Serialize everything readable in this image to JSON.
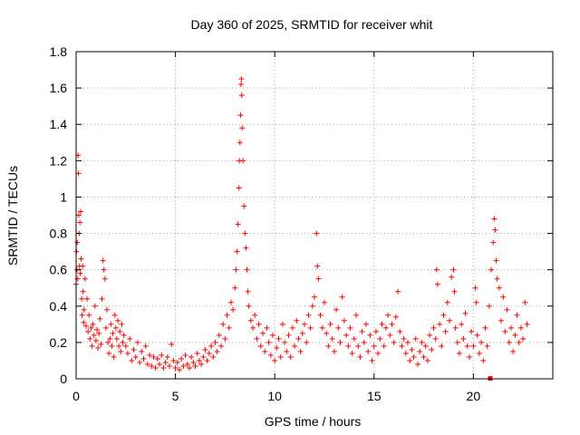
{
  "chart_data": {
    "type": "scatter",
    "title": "Day 360 of 2025, SRMTID for receiver whit",
    "xlabel": "GPS time / hours",
    "ylabel": "SRMTID / TECUs",
    "xlim": [
      0,
      24
    ],
    "ylim": [
      0,
      1.8
    ],
    "xticks": [
      0,
      5,
      10,
      15,
      20
    ],
    "yticks": [
      0,
      0.2,
      0.4,
      0.6,
      0.8,
      1,
      1.2,
      1.4,
      1.6,
      1.8
    ],
    "ytick_labels": [
      "0",
      "0.2",
      "0.4",
      "0.6",
      "0.8",
      "1",
      "1.2",
      "1.4",
      "1.6",
      "1.8"
    ],
    "grid": true,
    "marker": "+",
    "color": "#ff0000",
    "series": [
      {
        "name": "SRMTID",
        "points": [
          [
            0.0,
            0.52
          ],
          [
            0.02,
            0.7
          ],
          [
            0.04,
            0.6
          ],
          [
            0.06,
            0.75
          ],
          [
            0.08,
            0.55
          ],
          [
            0.1,
            1.23
          ],
          [
            0.12,
            1.13
          ],
          [
            0.13,
            0.9
          ],
          [
            0.15,
            0.8
          ],
          [
            0.17,
            0.62
          ],
          [
            0.19,
            0.86
          ],
          [
            0.21,
            0.58
          ],
          [
            0.23,
            0.92
          ],
          [
            0.25,
            0.66
          ],
          [
            0.28,
            0.44
          ],
          [
            0.3,
            0.35
          ],
          [
            0.33,
            0.62
          ],
          [
            0.35,
            0.48
          ],
          [
            0.38,
            0.31
          ],
          [
            0.4,
            0.38
          ],
          [
            0.45,
            0.55
          ],
          [
            0.5,
            0.29
          ],
          [
            0.55,
            0.44
          ],
          [
            0.6,
            0.26
          ],
          [
            0.65,
            0.35
          ],
          [
            0.7,
            0.22
          ],
          [
            0.75,
            0.28
          ],
          [
            0.8,
            0.18
          ],
          [
            0.85,
            0.3
          ],
          [
            0.9,
            0.24
          ],
          [
            0.95,
            0.4
          ],
          [
            1.0,
            0.21
          ],
          [
            1.05,
            0.27
          ],
          [
            1.1,
            0.17
          ],
          [
            1.15,
            0.25
          ],
          [
            1.2,
            0.33
          ],
          [
            1.25,
            0.19
          ],
          [
            1.3,
            0.44
          ],
          [
            1.35,
            0.65
          ],
          [
            1.4,
            0.6
          ],
          [
            1.45,
            0.55
          ],
          [
            1.5,
            0.28
          ],
          [
            1.55,
            0.38
          ],
          [
            1.6,
            0.2
          ],
          [
            1.65,
            0.14
          ],
          [
            1.7,
            0.22
          ],
          [
            1.75,
            0.3
          ],
          [
            1.8,
            0.18
          ],
          [
            1.85,
            0.25
          ],
          [
            1.9,
            0.12
          ],
          [
            1.95,
            0.35
          ],
          [
            2.0,
            0.28
          ],
          [
            2.05,
            0.22
          ],
          [
            2.1,
            0.32
          ],
          [
            2.15,
            0.18
          ],
          [
            2.2,
            0.26
          ],
          [
            2.25,
            0.15
          ],
          [
            2.3,
            0.3
          ],
          [
            2.35,
            0.2
          ],
          [
            2.4,
            0.24
          ],
          [
            2.5,
            0.18
          ],
          [
            2.6,
            0.14
          ],
          [
            2.7,
            0.22
          ],
          [
            2.8,
            0.1
          ],
          [
            2.9,
            0.16
          ],
          [
            3.0,
            0.12
          ],
          [
            3.1,
            0.2
          ],
          [
            3.2,
            0.09
          ],
          [
            3.3,
            0.15
          ],
          [
            3.4,
            0.11
          ],
          [
            3.5,
            0.18
          ],
          [
            3.6,
            0.08
          ],
          [
            3.7,
            0.13
          ],
          [
            3.8,
            0.07
          ],
          [
            3.9,
            0.12
          ],
          [
            4.0,
            0.06
          ],
          [
            4.1,
            0.11
          ],
          [
            4.2,
            0.08
          ],
          [
            4.3,
            0.13
          ],
          [
            4.4,
            0.06
          ],
          [
            4.5,
            0.09
          ],
          [
            4.6,
            0.12
          ],
          [
            4.7,
            0.07
          ],
          [
            4.8,
            0.19
          ],
          [
            4.9,
            0.1
          ],
          [
            5.0,
            0.06
          ],
          [
            5.1,
            0.09
          ],
          [
            5.2,
            0.05
          ],
          [
            5.3,
            0.11
          ],
          [
            5.4,
            0.07
          ],
          [
            5.5,
            0.13
          ],
          [
            5.6,
            0.08
          ],
          [
            5.7,
            0.06
          ],
          [
            5.8,
            0.12
          ],
          [
            5.9,
            0.09
          ],
          [
            6.0,
            0.07
          ],
          [
            6.1,
            0.14
          ],
          [
            6.2,
            0.1
          ],
          [
            6.3,
            0.08
          ],
          [
            6.4,
            0.12
          ],
          [
            6.5,
            0.16
          ],
          [
            6.6,
            0.1
          ],
          [
            6.7,
            0.14
          ],
          [
            6.8,
            0.18
          ],
          [
            6.9,
            0.12
          ],
          [
            7.0,
            0.2
          ],
          [
            7.1,
            0.15
          ],
          [
            7.2,
            0.24
          ],
          [
            7.3,
            0.18
          ],
          [
            7.4,
            0.3
          ],
          [
            7.5,
            0.22
          ],
          [
            7.6,
            0.35
          ],
          [
            7.7,
            0.28
          ],
          [
            7.8,
            0.42
          ],
          [
            7.9,
            0.38
          ],
          [
            8.0,
            0.5
          ],
          [
            8.05,
            0.6
          ],
          [
            8.1,
            0.7
          ],
          [
            8.15,
            0.85
          ],
          [
            8.2,
            1.05
          ],
          [
            8.22,
            1.2
          ],
          [
            8.25,
            1.3
          ],
          [
            8.28,
            1.45
          ],
          [
            8.3,
            1.62
          ],
          [
            8.32,
            1.65
          ],
          [
            8.34,
            1.56
          ],
          [
            8.36,
            1.38
          ],
          [
            8.4,
            1.2
          ],
          [
            8.45,
            0.95
          ],
          [
            8.5,
            0.8
          ],
          [
            8.55,
            0.72
          ],
          [
            8.6,
            0.6
          ],
          [
            8.65,
            0.48
          ],
          [
            8.7,
            0.4
          ],
          [
            8.8,
            0.32
          ],
          [
            8.9,
            0.28
          ],
          [
            9.0,
            0.35
          ],
          [
            9.1,
            0.22
          ],
          [
            9.2,
            0.3
          ],
          [
            9.3,
            0.18
          ],
          [
            9.4,
            0.25
          ],
          [
            9.5,
            0.15
          ],
          [
            9.6,
            0.28
          ],
          [
            9.7,
            0.2
          ],
          [
            9.8,
            0.13
          ],
          [
            9.9,
            0.24
          ],
          [
            10.0,
            0.1
          ],
          [
            10.1,
            0.17
          ],
          [
            10.2,
            0.22
          ],
          [
            10.3,
            0.12
          ],
          [
            10.4,
            0.3
          ],
          [
            10.5,
            0.2
          ],
          [
            10.6,
            0.15
          ],
          [
            10.7,
            0.24
          ],
          [
            10.8,
            0.12
          ],
          [
            10.9,
            0.28
          ],
          [
            11.0,
            0.18
          ],
          [
            11.1,
            0.32
          ],
          [
            11.2,
            0.22
          ],
          [
            11.3,
            0.15
          ],
          [
            11.4,
            0.25
          ],
          [
            11.5,
            0.3
          ],
          [
            11.6,
            0.2
          ],
          [
            11.7,
            0.35
          ],
          [
            11.8,
            0.28
          ],
          [
            11.9,
            0.4
          ],
          [
            12.0,
            0.45
          ],
          [
            12.1,
            0.8
          ],
          [
            12.15,
            0.62
          ],
          [
            12.2,
            0.55
          ],
          [
            12.3,
            0.35
          ],
          [
            12.4,
            0.28
          ],
          [
            12.5,
            0.42
          ],
          [
            12.6,
            0.25
          ],
          [
            12.7,
            0.18
          ],
          [
            12.8,
            0.3
          ],
          [
            12.9,
            0.22
          ],
          [
            13.0,
            0.15
          ],
          [
            13.1,
            0.38
          ],
          [
            13.2,
            0.28
          ],
          [
            13.3,
            0.2
          ],
          [
            13.4,
            0.45
          ],
          [
            13.5,
            0.32
          ],
          [
            13.6,
            0.24
          ],
          [
            13.7,
            0.18
          ],
          [
            13.8,
            0.28
          ],
          [
            13.9,
            0.14
          ],
          [
            14.0,
            0.22
          ],
          [
            14.1,
            0.35
          ],
          [
            14.2,
            0.18
          ],
          [
            14.3,
            0.12
          ],
          [
            14.4,
            0.26
          ],
          [
            14.5,
            0.2
          ],
          [
            14.6,
            0.3
          ],
          [
            14.7,
            0.15
          ],
          [
            14.8,
            0.24
          ],
          [
            14.9,
            0.1
          ],
          [
            15.0,
            0.18
          ],
          [
            15.1,
            0.26
          ],
          [
            15.2,
            0.14
          ],
          [
            15.3,
            0.22
          ],
          [
            15.4,
            0.3
          ],
          [
            15.5,
            0.18
          ],
          [
            15.6,
            0.28
          ],
          [
            15.7,
            0.35
          ],
          [
            15.8,
            0.24
          ],
          [
            15.9,
            0.3
          ],
          [
            16.0,
            0.2
          ],
          [
            16.1,
            0.34
          ],
          [
            16.2,
            0.48
          ],
          [
            16.3,
            0.26
          ],
          [
            16.4,
            0.18
          ],
          [
            16.5,
            0.22
          ],
          [
            16.6,
            0.14
          ],
          [
            16.7,
            0.2
          ],
          [
            16.8,
            0.1
          ],
          [
            16.9,
            0.16
          ],
          [
            17.0,
            0.12
          ],
          [
            17.1,
            0.22
          ],
          [
            17.2,
            0.08
          ],
          [
            17.3,
            0.15
          ],
          [
            17.4,
            0.2
          ],
          [
            17.5,
            0.12
          ],
          [
            17.6,
            0.18
          ],
          [
            17.7,
            0.1
          ],
          [
            17.8,
            0.24
          ],
          [
            17.9,
            0.16
          ],
          [
            18.0,
            0.28
          ],
          [
            18.1,
            0.22
          ],
          [
            18.15,
            0.6
          ],
          [
            18.2,
            0.52
          ],
          [
            18.3,
            0.3
          ],
          [
            18.4,
            0.18
          ],
          [
            18.5,
            0.35
          ],
          [
            18.6,
            0.26
          ],
          [
            18.7,
            0.42
          ],
          [
            18.8,
            0.32
          ],
          [
            18.9,
            0.56
          ],
          [
            19.0,
            0.6
          ],
          [
            19.05,
            0.48
          ],
          [
            19.1,
            0.28
          ],
          [
            19.2,
            0.2
          ],
          [
            19.3,
            0.14
          ],
          [
            19.4,
            0.3
          ],
          [
            19.5,
            0.22
          ],
          [
            19.6,
            0.36
          ],
          [
            19.7,
            0.18
          ],
          [
            19.8,
            0.12
          ],
          [
            19.9,
            0.26
          ],
          [
            20.0,
            0.18
          ],
          [
            20.1,
            0.5
          ],
          [
            20.15,
            0.42
          ],
          [
            20.2,
            0.24
          ],
          [
            20.3,
            0.14
          ],
          [
            20.4,
            0.2
          ],
          [
            20.5,
            0.1
          ],
          [
            20.6,
            0.28
          ],
          [
            20.7,
            0.18
          ],
          [
            20.8,
            0.4
          ],
          [
            20.9,
            0.6
          ],
          [
            21.0,
            0.75
          ],
          [
            21.05,
            0.88
          ],
          [
            21.1,
            0.82
          ],
          [
            21.15,
            0.65
          ],
          [
            21.2,
            0.55
          ],
          [
            21.3,
            0.5
          ],
          [
            21.4,
            0.32
          ],
          [
            21.5,
            0.45
          ],
          [
            21.6,
            0.26
          ],
          [
            21.7,
            0.38
          ],
          [
            21.8,
            0.2
          ],
          [
            21.9,
            0.28
          ],
          [
            22.0,
            0.15
          ],
          [
            22.1,
            0.24
          ],
          [
            22.2,
            0.35
          ],
          [
            22.3,
            0.2
          ],
          [
            22.4,
            0.28
          ],
          [
            22.5,
            0.22
          ],
          [
            22.6,
            0.42
          ],
          [
            22.7,
            0.3
          ]
        ]
      }
    ],
    "extra_marks": [
      [
        20.85,
        0.0
      ]
    ]
  }
}
